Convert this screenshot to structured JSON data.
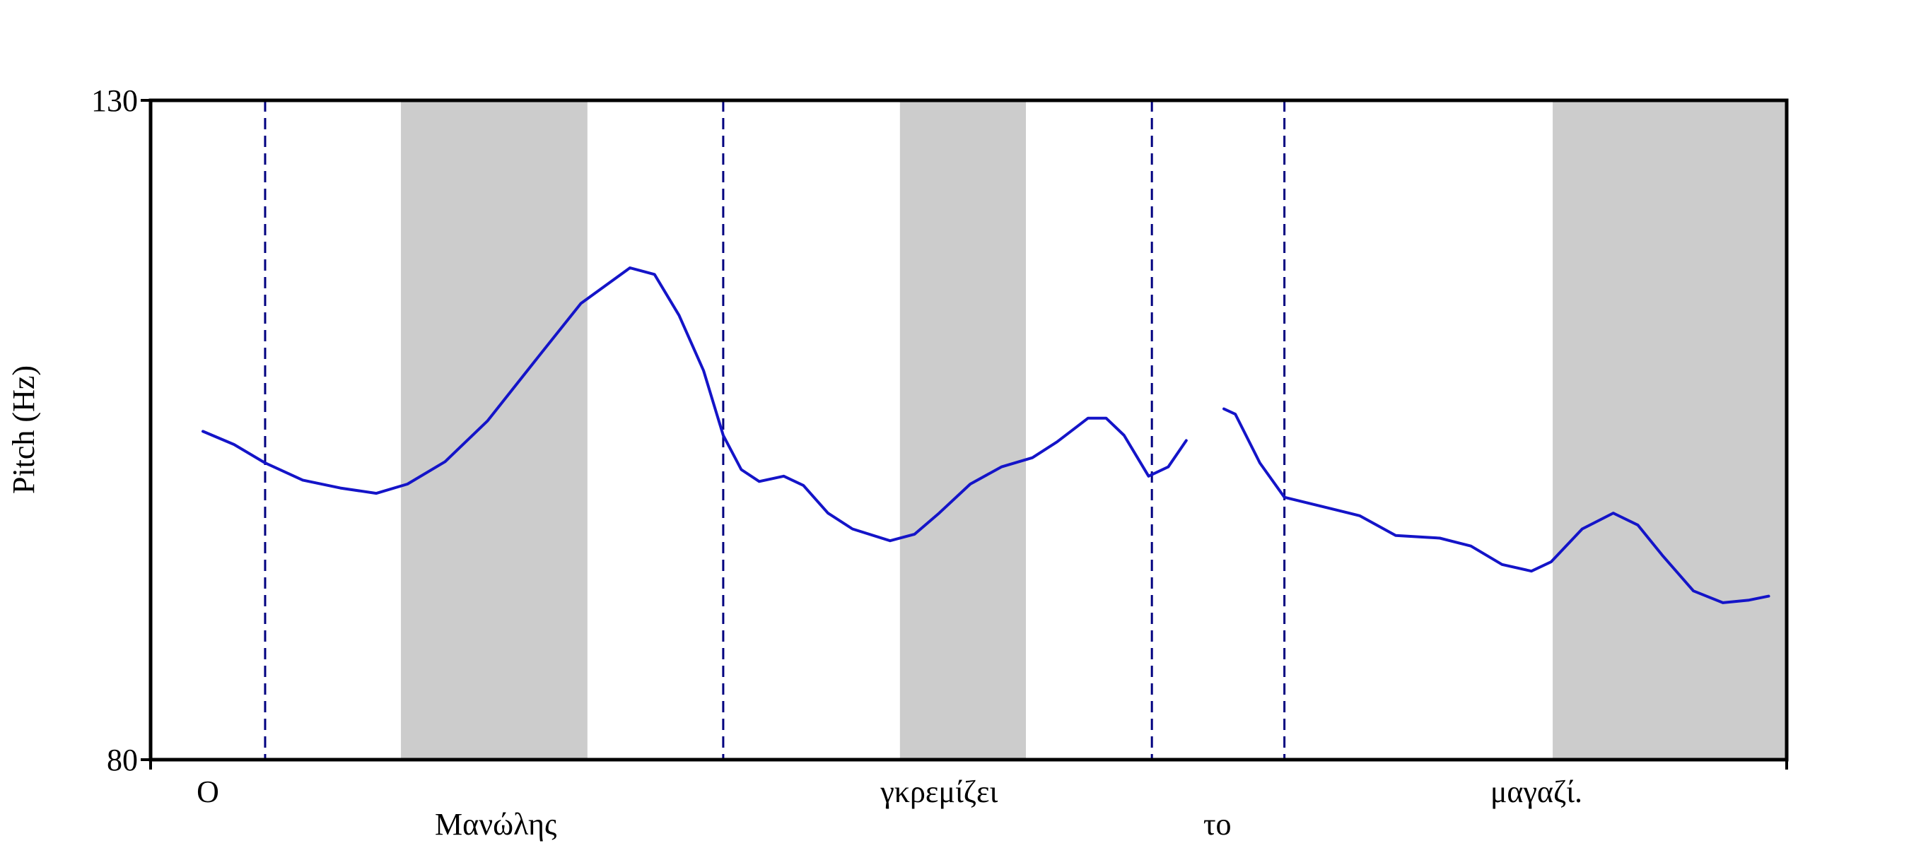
{
  "chart_data": {
    "type": "line",
    "y_label": "Pitch (Hz)",
    "ylim": [
      80,
      130
    ],
    "yticks": [
      80,
      130
    ],
    "xlim": [
      0,
      100
    ],
    "color": "#1414c8",
    "boundary_color": "#000080",
    "band_color": "#cccccc",
    "x": [
      3.2,
      5.1,
      7.0,
      9.3,
      11.6,
      13.8,
      15.7,
      18.0,
      20.6,
      23.6,
      26.3,
      29.3,
      30.8,
      32.3,
      33.8,
      35.0,
      36.1,
      37.2,
      38.7,
      39.9,
      41.4,
      42.9,
      45.2,
      46.7,
      48.2,
      50.1,
      52.0,
      53.9,
      55.4,
      57.3,
      58.4,
      59.5,
      61.0,
      62.2,
      63.3,
      64.4,
      65.6,
      66.3,
      67.8,
      69.3,
      71.6,
      73.9,
      76.1,
      78.8,
      80.7,
      82.6,
      84.4,
      85.6,
      87.5,
      89.4,
      90.9,
      92.4,
      94.3,
      96.1,
      97.7,
      98.9
    ],
    "values": [
      104.9,
      103.9,
      102.5,
      101.2,
      100.6,
      100.2,
      100.9,
      102.6,
      105.7,
      110.4,
      114.6,
      117.3,
      116.8,
      113.7,
      109.5,
      104.6,
      102.0,
      101.1,
      101.5,
      100.8,
      98.7,
      97.5,
      96.6,
      97.1,
      98.7,
      100.9,
      102.2,
      102.9,
      104.1,
      105.9,
      105.9,
      104.6,
      101.5,
      102.2,
      104.2,
      null,
      106.6,
      106.2,
      102.5,
      99.9,
      99.2,
      98.5,
      97.0,
      96.8,
      96.2,
      94.8,
      94.3,
      95.0,
      97.5,
      98.7,
      97.8,
      95.5,
      92.8,
      91.9,
      92.1,
      92.4
    ],
    "boundaries": [
      7.0,
      35.0,
      61.2,
      69.3
    ],
    "bands": [
      [
        15.3,
        26.7
      ],
      [
        45.8,
        53.5
      ],
      [
        85.7,
        100
      ]
    ],
    "words": [
      {
        "text": "Ο",
        "x": 3.5
      },
      {
        "text": "Μανώλης",
        "x": 21.1
      },
      {
        "text": "γκρεμίζει",
        "x": 48.2
      },
      {
        "text": "το",
        "x": 65.2
      },
      {
        "text": "μαγαζί.",
        "x": 84.7
      }
    ]
  }
}
